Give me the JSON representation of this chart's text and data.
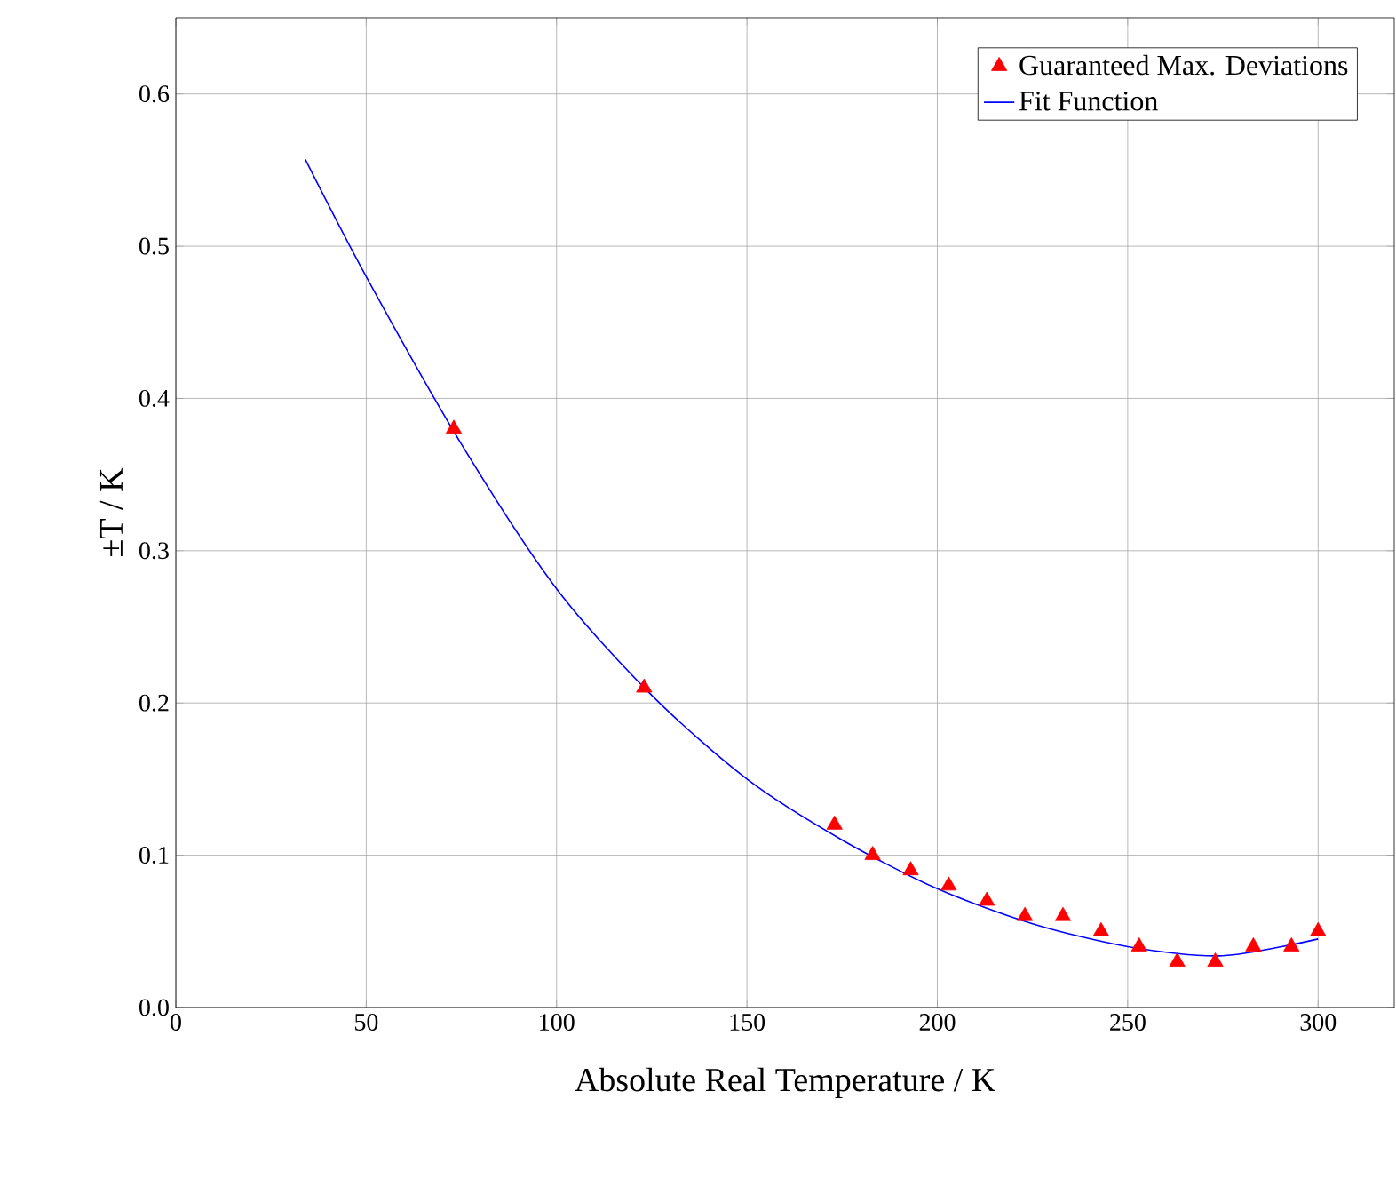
{
  "chart_data": {
    "type": "scatter",
    "xlabel": "Absolute Real Temperature / K",
    "ylabel": "±T / K",
    "xlim": [
      0,
      320
    ],
    "ylim": [
      0,
      0.65
    ],
    "xticks": [
      0,
      50,
      100,
      150,
      200,
      250,
      300
    ],
    "yticks": [
      {
        "value": 0,
        "label": "0.0"
      },
      0.1,
      0.2,
      0.3,
      0.4,
      0.5,
      0.6
    ],
    "grid": true,
    "legend": "top right",
    "series": [
      {
        "name": "Guaranteed Max. Deviations",
        "marker": "triangle",
        "color": "#ff0000",
        "x": [
          73,
          123,
          173,
          183,
          193,
          203,
          213,
          223,
          233,
          243,
          253,
          263,
          273,
          283,
          293,
          300
        ],
        "values": [
          0.38,
          0.21,
          0.12,
          0.1,
          0.09,
          0.08,
          0.07,
          0.06,
          0.06,
          0.05,
          0.04,
          0.03,
          0.03,
          0.04,
          0.04,
          0.05
        ]
      },
      {
        "name": "Fit Function",
        "type": "line",
        "color": "#0000ff",
        "x": [
          34,
          50,
          75,
          100,
          125,
          150,
          175,
          200,
          225,
          250,
          275,
          300
        ],
        "values": [
          0.557,
          0.48,
          0.37,
          0.275,
          0.205,
          0.15,
          0.11,
          0.078,
          0.055,
          0.04,
          0.034,
          0.045
        ]
      }
    ]
  }
}
